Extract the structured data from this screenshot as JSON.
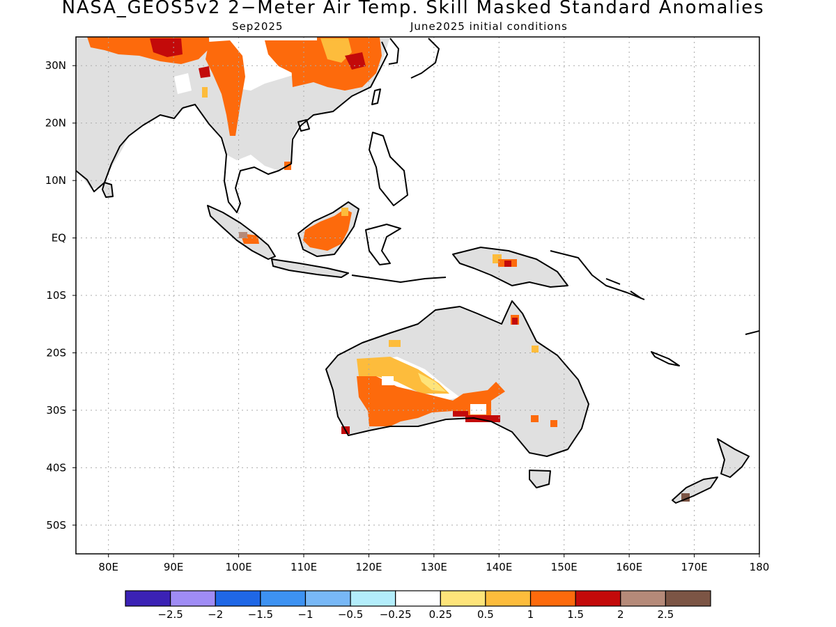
{
  "header": {
    "title": "NASA_GEOS5v2 2−Meter Air Temp. Skill Masked Standard Anomalies",
    "subtitle_left": "Sep2025",
    "subtitle_right": "June2025 initial conditions"
  },
  "map": {
    "lon_range": [
      75,
      180
    ],
    "lat_range": [
      -55,
      35
    ],
    "lat_ticks": [
      {
        "lat": 30,
        "label": "30N"
      },
      {
        "lat": 20,
        "label": "20N"
      },
      {
        "lat": 10,
        "label": "10N"
      },
      {
        "lat": 0,
        "label": "EQ"
      },
      {
        "lat": -10,
        "label": "10S"
      },
      {
        "lat": -20,
        "label": "20S"
      },
      {
        "lat": -30,
        "label": "30S"
      },
      {
        "lat": -40,
        "label": "40S"
      },
      {
        "lat": -50,
        "label": "50S"
      }
    ],
    "lon_ticks": [
      {
        "lon": 80,
        "label": "80E"
      },
      {
        "lon": 90,
        "label": "90E"
      },
      {
        "lon": 100,
        "label": "100E"
      },
      {
        "lon": 110,
        "label": "110E"
      },
      {
        "lon": 120,
        "label": "120E"
      },
      {
        "lon": 130,
        "label": "130E"
      },
      {
        "lon": 140,
        "label": "140E"
      },
      {
        "lon": 150,
        "label": "150E"
      },
      {
        "lon": 160,
        "label": "160E"
      },
      {
        "lon": 170,
        "label": "170E"
      },
      {
        "lon": 180,
        "label": "180"
      }
    ],
    "grid": true,
    "masked_land_color": "#e0e0e0"
  },
  "legend": {
    "colors": [
      "#3b22b5",
      "#9f8cf5",
      "#1f67e6",
      "#3d92f2",
      "#78b8f7",
      "#b3edfb",
      "#ffffff",
      "#fee47a",
      "#fdbc3c",
      "#fd6a0c",
      "#c30a0a",
      "#b58a79",
      "#7c5545"
    ],
    "labels": [
      "−2.5",
      "−2",
      "−1.5",
      "−1",
      "−0.5",
      "−0.25",
      "0.25",
      "0.5",
      "1",
      "1.5",
      "2",
      "2.5"
    ]
  }
}
